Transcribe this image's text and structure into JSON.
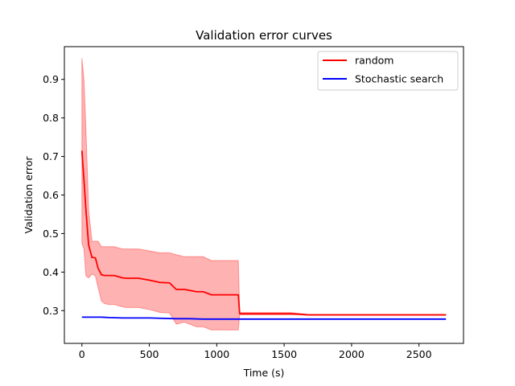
{
  "chart_data": {
    "type": "line",
    "title": "Validation error curves",
    "xlabel": "Time (s)",
    "ylabel": "Validation error",
    "xlim": [
      -130,
      2830
    ],
    "ylim": [
      0.215,
      0.985
    ],
    "xticks": [
      0,
      500,
      1000,
      1500,
      2000,
      2500
    ],
    "yticks": [
      0.3,
      0.4,
      0.5,
      0.6,
      0.7,
      0.8,
      0.9
    ],
    "grid": false,
    "legend_position": "upper right",
    "series": [
      {
        "name": "random",
        "color": "#ff0000",
        "band_color": "#ff0000",
        "band_opacity": 0.3,
        "x": [
          0,
          15,
          30,
          50,
          75,
          100,
          120,
          145,
          170,
          200,
          240,
          300,
          330,
          420,
          500,
          580,
          650,
          700,
          760,
          850,
          900,
          960,
          1000,
          1100,
          1160,
          1170,
          1300,
          1400,
          1550,
          1600,
          1680,
          2000,
          2500,
          2700
        ],
        "y": [
          0.715,
          0.64,
          0.56,
          0.47,
          0.438,
          0.437,
          0.41,
          0.393,
          0.391,
          0.391,
          0.391,
          0.385,
          0.384,
          0.384,
          0.379,
          0.373,
          0.372,
          0.355,
          0.355,
          0.349,
          0.349,
          0.341,
          0.341,
          0.341,
          0.341,
          0.292,
          0.292,
          0.292,
          0.292,
          0.291,
          0.289,
          0.289,
          0.289,
          0.289
        ],
        "upper": [
          0.955,
          0.9,
          0.77,
          0.56,
          0.48,
          0.48,
          0.48,
          0.466,
          0.466,
          0.466,
          0.466,
          0.46,
          0.46,
          0.46,
          0.455,
          0.45,
          0.45,
          0.445,
          0.44,
          0.44,
          0.44,
          0.43,
          0.43,
          0.43,
          0.43,
          0.295,
          0.295,
          0.295,
          0.295,
          0.293,
          0.29,
          0.29,
          0.29,
          0.29
        ],
        "lower": [
          0.475,
          0.46,
          0.39,
          0.385,
          0.395,
          0.39,
          0.36,
          0.325,
          0.318,
          0.316,
          0.316,
          0.31,
          0.308,
          0.308,
          0.303,
          0.295,
          0.294,
          0.265,
          0.27,
          0.258,
          0.258,
          0.25,
          0.25,
          0.25,
          0.25,
          0.289,
          0.289,
          0.289,
          0.289,
          0.289,
          0.288,
          0.288,
          0.288,
          0.288
        ]
      },
      {
        "name": "Stochastic search",
        "color": "#0000ff",
        "x": [
          0,
          50,
          100,
          150,
          200,
          300,
          500,
          600,
          700,
          800,
          900,
          1000,
          1160,
          1500,
          2000,
          2500,
          2700
        ],
        "y": [
          0.283,
          0.283,
          0.283,
          0.283,
          0.282,
          0.281,
          0.281,
          0.28,
          0.279,
          0.279,
          0.278,
          0.278,
          0.278,
          0.278,
          0.278,
          0.278,
          0.278
        ]
      }
    ]
  }
}
